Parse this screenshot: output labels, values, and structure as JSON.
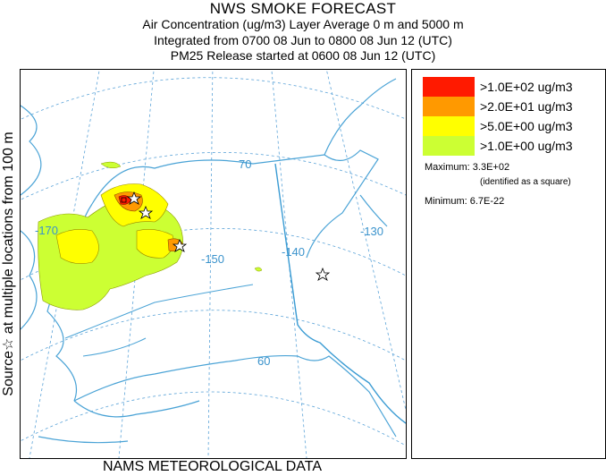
{
  "header": {
    "title": "NWS SMOKE FORECAST",
    "line1": "Air Concentration (ug/m3) Layer Average    0 m and  5000 m",
    "line2": "Integrated from 0700 08 Jun to 0800 08 Jun 12 (UTC)",
    "line3": "PM25 Release started at 0600 08 Jun 12 (UTC)"
  },
  "side_label": "Source☆ at multiple locations from 100 m",
  "footer": "NAMS METEOROLOGICAL DATA",
  "map": {
    "longitude_labels": [
      "-170",
      "-150",
      "-140",
      "-130"
    ],
    "latitude_labels": [
      "70",
      "60"
    ],
    "colors": {
      "graticule": "#5ba3d8",
      "coast": "#4aa3d6",
      "border": "#3a9bd3",
      "label": "#3b93cc"
    }
  },
  "legend": {
    "items": [
      {
        "label": ">1.0E+02 ug/m3",
        "color": "#ff1a00"
      },
      {
        "label": ">2.0E+01 ug/m3",
        "color": "#ff9900"
      },
      {
        "label": ">5.0E+00 ug/m3",
        "color": "#ffff00"
      },
      {
        "label": ">1.0E+00 ug/m3",
        "color": "#ccff33"
      }
    ],
    "maximum": "Maximum: 3.3E+02",
    "maximum_note": "(identified as a square)",
    "minimum": "Minimum: 6.7E-22"
  }
}
